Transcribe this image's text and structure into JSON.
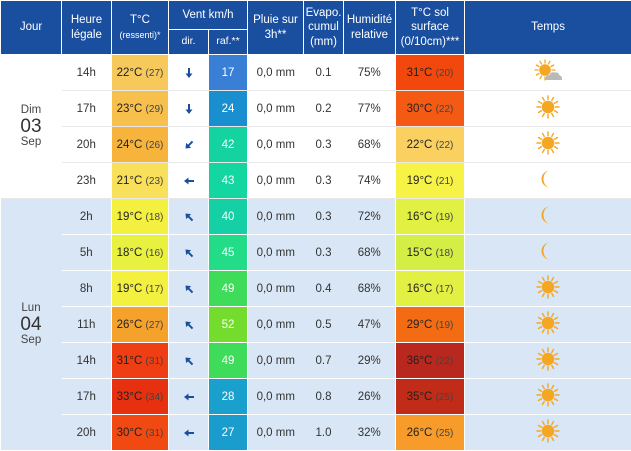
{
  "header": {
    "jour": "Jour",
    "heure_1": "Heure",
    "heure_2": "légale",
    "temp_1": "T°C",
    "temp_2": "(ressenti)*",
    "vent": "Vent km/h",
    "dir": "dir.",
    "raf": "raf.**",
    "pluie_1": "Pluie sur",
    "pluie_2": "3h**",
    "evapo_1": "Evapo.",
    "evapo_2": "cumul",
    "evapo_3": "(mm)",
    "humid_1": "Humidité",
    "humid_2": "relative",
    "sol_1": "T°C sol",
    "sol_2": "surface",
    "sol_3": "(0/10cm)***",
    "temps": "Temps"
  },
  "days": [
    {
      "label": "Dim",
      "num": "03",
      "month": "Sep",
      "rows": [
        {
          "hour": "14h",
          "temp": "22°C",
          "feel": "(27)",
          "temp_color": "#f7c85a",
          "dir": "s",
          "dir_icon": "arrow-down-icon",
          "gust": "17",
          "gust_color": "#3a7fd6",
          "rain": "0,0 mm",
          "evapo": "0.1",
          "humid": "75%",
          "soil": "31°C",
          "soil_feel": "(20)",
          "soil_color": "#f2480e",
          "weather": "sun-cloud-icon"
        },
        {
          "hour": "17h",
          "temp": "23°C",
          "feel": "(29)",
          "temp_color": "#f7c04c",
          "dir": "s",
          "dir_icon": "arrow-down-icon",
          "gust": "24",
          "gust_color": "#1a8fd0",
          "rain": "0,0 mm",
          "evapo": "0.2",
          "humid": "77%",
          "soil": "30°C",
          "soil_feel": "(22)",
          "soil_color": "#f55a14",
          "weather": "sun-icon"
        },
        {
          "hour": "20h",
          "temp": "24°C",
          "feel": "(26)",
          "temp_color": "#f7b43c",
          "dir": "sw",
          "dir_icon": "arrow-down-left-icon",
          "gust": "42",
          "gust_color": "#14d3a0",
          "rain": "0,0 mm",
          "evapo": "0.3",
          "humid": "68%",
          "soil": "22°C",
          "soil_feel": "(22)",
          "soil_color": "#fad060",
          "weather": "sun-icon"
        },
        {
          "hour": "23h",
          "temp": "21°C",
          "feel": "(23)",
          "temp_color": "#f9e05a",
          "dir": "w",
          "dir_icon": "arrow-left-icon",
          "gust": "43",
          "gust_color": "#14d6a0",
          "rain": "0,0 mm",
          "evapo": "0.3",
          "humid": "74%",
          "soil": "19°C",
          "soil_feel": "(21)",
          "soil_color": "#f6f246",
          "weather": "moon-icon"
        }
      ]
    },
    {
      "label": "Lun",
      "num": "04",
      "month": "Sep",
      "rows": [
        {
          "hour": "2h",
          "temp": "19°C",
          "feel": "(18)",
          "temp_color": "#f4f040",
          "dir": "nw",
          "dir_icon": "arrow-up-left-icon",
          "gust": "40",
          "gust_color": "#14d0a4",
          "rain": "0,0 mm",
          "evapo": "0.3",
          "humid": "72%",
          "soil": "16°C",
          "soil_feel": "(19)",
          "soil_color": "#e2f044",
          "weather": "moon-icon"
        },
        {
          "hour": "5h",
          "temp": "18°C",
          "feel": "(16)",
          "temp_color": "#e8f040",
          "dir": "nw",
          "dir_icon": "arrow-up-left-icon",
          "gust": "45",
          "gust_color": "#22dc88",
          "rain": "0,0 mm",
          "evapo": "0.3",
          "humid": "68%",
          "soil": "15°C",
          "soil_feel": "(18)",
          "soil_color": "#d4ee46",
          "weather": "moon-icon"
        },
        {
          "hour": "8h",
          "temp": "19°C",
          "feel": "(17)",
          "temp_color": "#f4f040",
          "dir": "nw",
          "dir_icon": "arrow-up-left-icon",
          "gust": "49",
          "gust_color": "#3edc5a",
          "rain": "0,0 mm",
          "evapo": "0.4",
          "humid": "68%",
          "soil": "16°C",
          "soil_feel": "(17)",
          "soil_color": "#e2f044",
          "weather": "sun-icon"
        },
        {
          "hour": "11h",
          "temp": "26°C",
          "feel": "(27)",
          "temp_color": "#f4a22c",
          "dir": "nw",
          "dir_icon": "arrow-up-left-icon",
          "gust": "52",
          "gust_color": "#74dc2c",
          "rain": "0,0 mm",
          "evapo": "0.5",
          "humid": "47%",
          "soil": "29°C",
          "soil_feel": "(19)",
          "soil_color": "#f36c14",
          "weather": "sun-icon"
        },
        {
          "hour": "14h",
          "temp": "31°C",
          "feel": "(31)",
          "temp_color": "#ef3e14",
          "dir": "nw",
          "dir_icon": "arrow-up-left-icon",
          "gust": "49",
          "gust_color": "#3edc5a",
          "rain": "0,0 mm",
          "evapo": "0.7",
          "humid": "29%",
          "soil": "36°C",
          "soil_feel": "(22)",
          "soil_color": "#b8281e",
          "weather": "sun-icon"
        },
        {
          "hour": "17h",
          "temp": "33°C",
          "feel": "(34)",
          "temp_color": "#e63010",
          "dir": "w",
          "dir_icon": "arrow-left-icon",
          "gust": "28",
          "gust_color": "#1aa0cc",
          "rain": "0,0 mm",
          "evapo": "0.8",
          "humid": "26%",
          "soil": "35°C",
          "soil_feel": "(25)",
          "soil_color": "#c02c18",
          "weather": "sun-icon"
        },
        {
          "hour": "20h",
          "temp": "30°C",
          "feel": "(31)",
          "temp_color": "#f04a12",
          "dir": "w",
          "dir_icon": "arrow-left-icon",
          "gust": "27",
          "gust_color": "#1a9ccc",
          "rain": "0,0 mm",
          "evapo": "1.0",
          "humid": "32%",
          "soil": "26°C",
          "soil_feel": "(25)",
          "soil_color": "#f79c2a",
          "weather": "sun-icon"
        }
      ]
    }
  ]
}
